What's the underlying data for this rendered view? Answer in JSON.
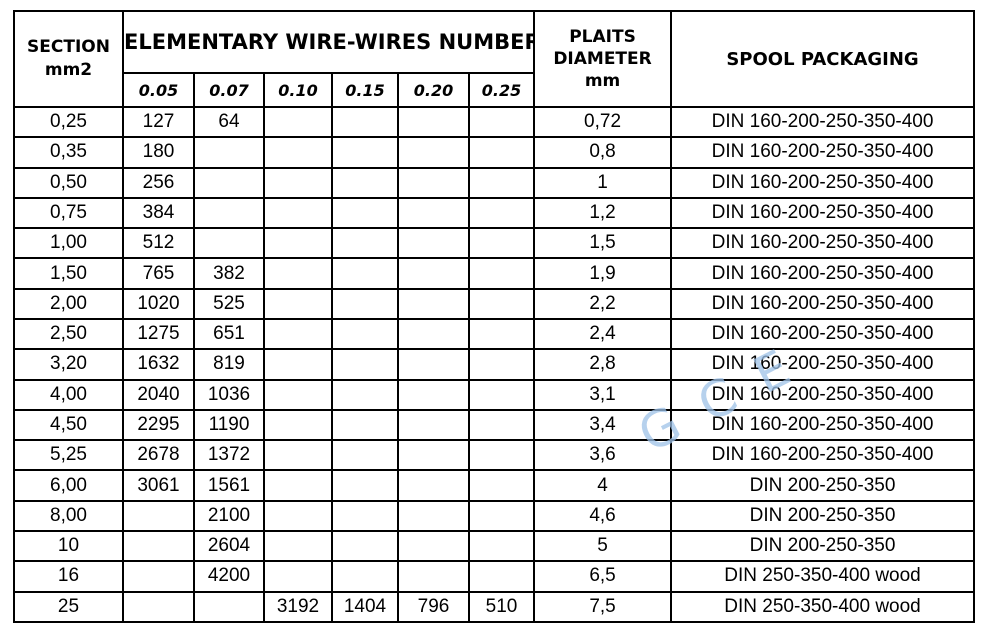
{
  "watermark": {
    "text": "G C E",
    "color": "#9ec2e8"
  },
  "table": {
    "header": {
      "section_lines": [
        "SECTION",
        "mm2"
      ],
      "wires_group": "ELEMENTARY WIRE-WIRES NUMBER",
      "diameters": [
        "0.05",
        "0.07",
        "0.10",
        "0.15",
        "0.20",
        "0.25"
      ],
      "plaits_lines": [
        "PLAITS",
        "DIAMETER",
        "mm"
      ],
      "spool": "SPOOL PACKAGING"
    },
    "rows": [
      [
        "0,25",
        "127",
        "64",
        "",
        "",
        "",
        "",
        "0,72",
        "DIN 160-200-250-350-400"
      ],
      [
        "0,35",
        "180",
        "",
        "",
        "",
        "",
        "",
        "0,8",
        "DIN 160-200-250-350-400"
      ],
      [
        "0,50",
        "256",
        "",
        "",
        "",
        "",
        "",
        "1",
        "DIN 160-200-250-350-400"
      ],
      [
        "0,75",
        "384",
        "",
        "",
        "",
        "",
        "",
        "1,2",
        "DIN 160-200-250-350-400"
      ],
      [
        "1,00",
        "512",
        "",
        "",
        "",
        "",
        "",
        "1,5",
        "DIN 160-200-250-350-400"
      ],
      [
        "1,50",
        "765",
        "382",
        "",
        "",
        "",
        "",
        "1,9",
        "DIN 160-200-250-350-400"
      ],
      [
        "2,00",
        "1020",
        "525",
        "",
        "",
        "",
        "",
        "2,2",
        "DIN 160-200-250-350-400"
      ],
      [
        "2,50",
        "1275",
        "651",
        "",
        "",
        "",
        "",
        "2,4",
        "DIN 160-200-250-350-400"
      ],
      [
        "3,20",
        "1632",
        "819",
        "",
        "",
        "",
        "",
        "2,8",
        "DIN 160-200-250-350-400"
      ],
      [
        "4,00",
        "2040",
        "1036",
        "",
        "",
        "",
        "",
        "3,1",
        "DIN 160-200-250-350-400"
      ],
      [
        "4,50",
        "2295",
        "1190",
        "",
        "",
        "",
        "",
        "3,4",
        "DIN 160-200-250-350-400"
      ],
      [
        "5,25",
        "2678",
        "1372",
        "",
        "",
        "",
        "",
        "3,6",
        "DIN 160-200-250-350-400"
      ],
      [
        "6,00",
        "3061",
        "1561",
        "",
        "",
        "",
        "",
        "4",
        "DIN 200-250-350"
      ],
      [
        "8,00",
        "",
        "2100",
        "",
        "",
        "",
        "",
        "4,6",
        "DIN 200-250-350"
      ],
      [
        "10",
        "",
        "2604",
        "",
        "",
        "",
        "",
        "5",
        "DIN 200-250-350"
      ],
      [
        "16",
        "",
        "4200",
        "",
        "",
        "",
        "",
        "6,5",
        "DIN 250-350-400 wood"
      ],
      [
        "25",
        "",
        "",
        "3192",
        "1404",
        "796",
        "510",
        "7,5",
        "DIN 250-350-400 wood"
      ]
    ],
    "cell_names": [
      "cell-section",
      "cell-wires-005",
      "cell-wires-007",
      "cell-wires-010",
      "cell-wires-015",
      "cell-wires-020",
      "cell-wires-025",
      "cell-plaits-diameter",
      "cell-spool-packaging"
    ]
  }
}
